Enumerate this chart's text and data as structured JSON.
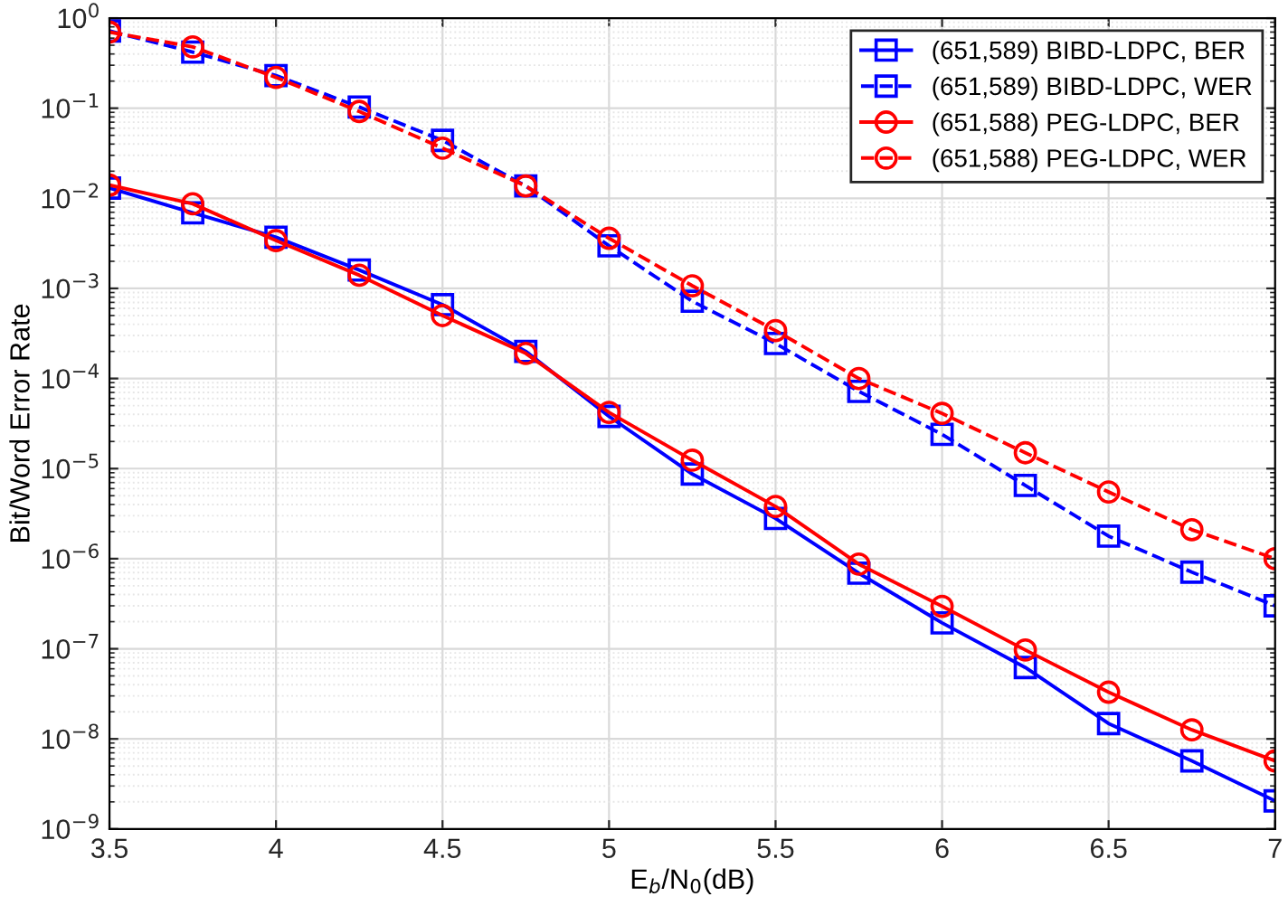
{
  "chart_data": {
    "type": "line",
    "xlabel": "E$_{b}$/N$_{0}$(dB)",
    "ylabel": "Bit/Word Error Rate",
    "x": [
      3.5,
      3.75,
      4.0,
      4.25,
      4.5,
      4.75,
      5.0,
      5.25,
      5.5,
      5.75,
      6.0,
      6.25,
      6.5,
      6.75,
      7.0
    ],
    "series": [
      {
        "name": "(651,589) BIBD-LDPC, BER",
        "color": "#0000ff",
        "marker": "square",
        "line_style": "solid",
        "values": [
          0.013,
          0.0069,
          0.0037,
          0.0016,
          0.00066,
          0.0002,
          3.8e-05,
          8.7e-06,
          2.8e-06,
          6.9e-07,
          1.94e-07,
          6.2e-08,
          1.48e-08,
          5.7e-09,
          2.05e-09
        ]
      },
      {
        "name": "(651,589) BIBD-LDPC, WER",
        "color": "#0000ff",
        "marker": "square",
        "line_style": "dashed",
        "values": [
          0.72,
          0.42,
          0.23,
          0.103,
          0.044,
          0.0137,
          0.00297,
          0.00072,
          0.000245,
          7.2e-05,
          2.4e-05,
          6.5e-06,
          1.78e-06,
          7.1e-07,
          3e-07
        ]
      },
      {
        "name": "(651,588) PEG-LDPC, BER",
        "color": "#ff0000",
        "marker": "circle",
        "line_style": "solid",
        "values": [
          0.014,
          0.0087,
          0.0034,
          0.0014,
          0.0005,
          0.00019,
          4.2e-05,
          1.24e-05,
          3.8e-06,
          8.7e-07,
          2.96e-07,
          9.7e-08,
          3.3e-08,
          1.26e-08,
          5.7e-09
        ]
      },
      {
        "name": "(651,588) PEG-LDPC, WER",
        "color": "#ff0000",
        "marker": "circle",
        "line_style": "dashed",
        "values": [
          0.7,
          0.48,
          0.22,
          0.092,
          0.036,
          0.0137,
          0.0036,
          0.00107,
          0.00034,
          0.0001,
          4.1e-05,
          1.5e-05,
          5.5e-06,
          2.1e-06,
          1e-06
        ]
      }
    ],
    "log": "y",
    "xlim": [
      3.5,
      7
    ],
    "xticks": [
      3.5,
      4,
      4.5,
      5,
      5.5,
      6,
      6.5,
      7
    ],
    "ylim": [
      1e-09,
      1
    ],
    "yticks": [
      {
        "value": 1e-09,
        "label": "10$^{−9}$"
      },
      {
        "value": 1e-08,
        "label": "10$^{−8}$"
      },
      {
        "value": 1e-07,
        "label": "10$^{−7}$"
      },
      {
        "value": 1e-06,
        "label": "10$^{−6}$"
      },
      {
        "value": 1e-05,
        "label": "10$^{−5}$"
      },
      {
        "value": 0.0001,
        "label": "10$^{−4}$"
      },
      {
        "value": 0.001,
        "label": "10$^{−3}$"
      },
      {
        "value": 0.01,
        "label": "10$^{−2}$"
      },
      {
        "value": 0.1,
        "label": "10$^{−1}$"
      },
      {
        "value": 1,
        "label": "10$^{0}$"
      }
    ],
    "grid": true,
    "legend": "top right"
  }
}
